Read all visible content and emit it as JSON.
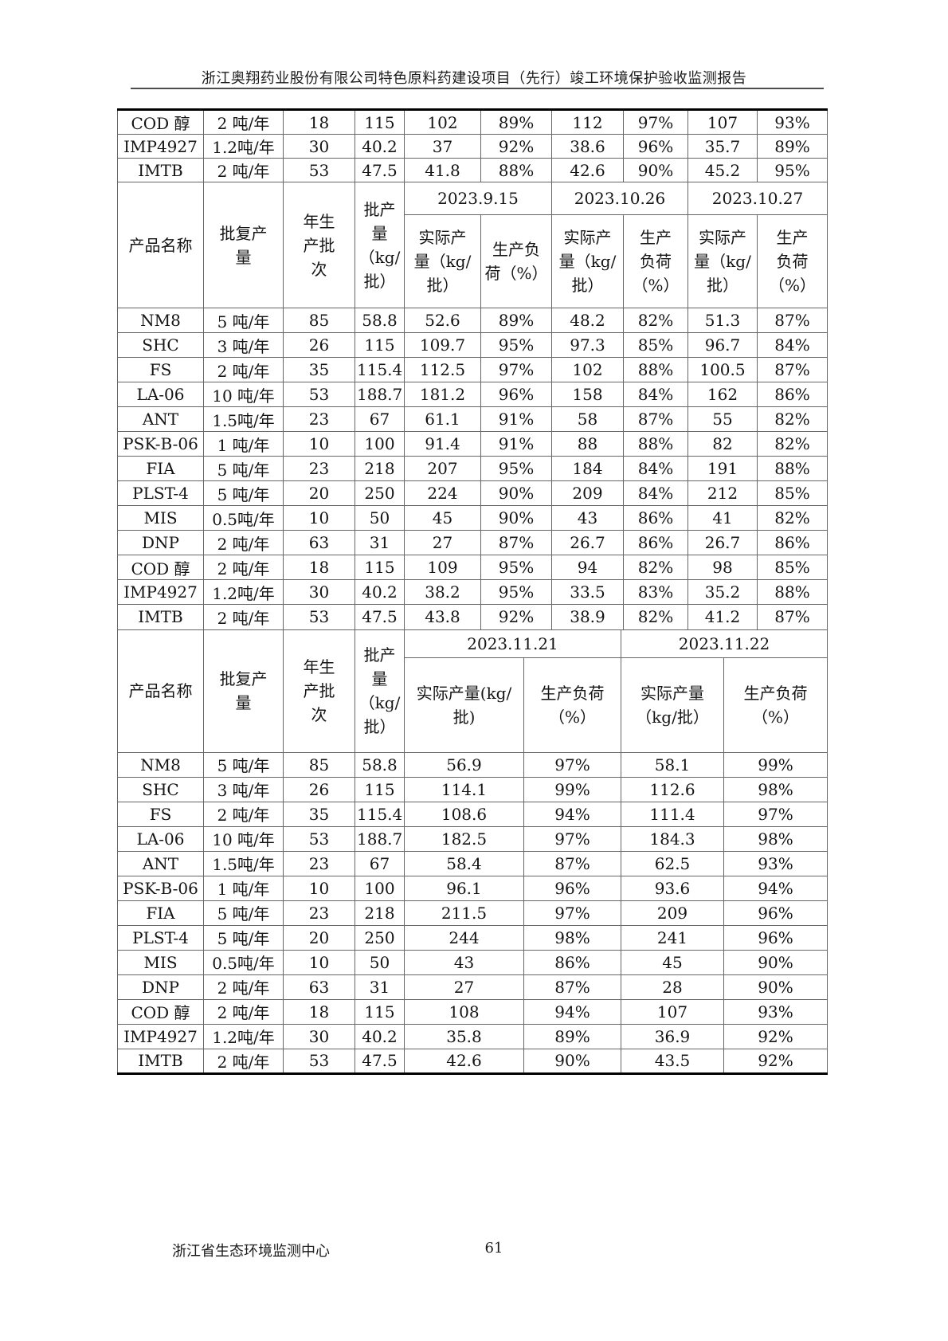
{
  "page": {
    "title": "浙江奥翔药业股份有限公司特色原料药建设项目（先行）竣工环境保护验收监测报告",
    "footer": {
      "org": "浙江省生态环境监测中心",
      "page_number": "61"
    }
  },
  "column_headers": {
    "product": "产品名称",
    "approved_output": "批复产\n量",
    "annual_batches": "年生\n产批\n次",
    "batch_output": "批产\n量\n（kg/\n批）"
  },
  "carryover": {
    "rows": [
      [
        "COD 醇",
        "2 吨/年",
        "18",
        "115",
        "102",
        "89%",
        "112",
        "97%",
        "107",
        "93%"
      ],
      [
        "IMP4927",
        "1.2吨/年",
        "30",
        "40.2",
        "37",
        "92%",
        "38.6",
        "96%",
        "35.7",
        "89%"
      ],
      [
        "IMTB",
        "2 吨/年",
        "53",
        "47.5",
        "41.8",
        "88%",
        "42.6",
        "90%",
        "45.2",
        "95%"
      ]
    ]
  },
  "table_sep_oct": {
    "dates": [
      "2023.9.15",
      "2023.10.26",
      "2023.10.27"
    ],
    "sub_headers": [
      "实际产\n量（kg/\n批）",
      "生产负\n荷（%）",
      "实际产\n量（kg/\n批）",
      "生产\n负荷\n（%）",
      "实际产\n量（kg/\n批）",
      "生产\n负荷\n（%）"
    ],
    "rows": [
      [
        "NM8",
        "5 吨/年",
        "85",
        "58.8",
        "52.6",
        "89%",
        "48.2",
        "82%",
        "51.3",
        "87%"
      ],
      [
        "SHC",
        "3 吨/年",
        "26",
        "115",
        "109.7",
        "95%",
        "97.3",
        "85%",
        "96.7",
        "84%"
      ],
      [
        "FS",
        "2 吨/年",
        "35",
        "115.4",
        "112.5",
        "97%",
        "102",
        "88%",
        "100.5",
        "87%"
      ],
      [
        "LA-06",
        "10 吨/年",
        "53",
        "188.7",
        "181.2",
        "96%",
        "158",
        "84%",
        "162",
        "86%"
      ],
      [
        "ANT",
        "1.5吨/年",
        "23",
        "67",
        "61.1",
        "91%",
        "58",
        "87%",
        "55",
        "82%"
      ],
      [
        "PSK-B-06",
        "1 吨/年",
        "10",
        "100",
        "91.4",
        "91%",
        "88",
        "88%",
        "82",
        "82%"
      ],
      [
        "FIA",
        "5 吨/年",
        "23",
        "218",
        "207",
        "95%",
        "184",
        "84%",
        "191",
        "88%"
      ],
      [
        "PLST-4",
        "5 吨/年",
        "20",
        "250",
        "224",
        "90%",
        "209",
        "84%",
        "212",
        "85%"
      ],
      [
        "MIS",
        "0.5吨/年",
        "10",
        "50",
        "45",
        "90%",
        "43",
        "86%",
        "41",
        "82%"
      ],
      [
        "DNP",
        "2 吨/年",
        "63",
        "31",
        "27",
        "87%",
        "26.7",
        "86%",
        "26.7",
        "86%"
      ],
      [
        "COD 醇",
        "2 吨/年",
        "18",
        "115",
        "109",
        "95%",
        "94",
        "82%",
        "98",
        "85%"
      ],
      [
        "IMP4927",
        "1.2吨/年",
        "30",
        "40.2",
        "38.2",
        "95%",
        "33.5",
        "83%",
        "35.2",
        "88%"
      ],
      [
        "IMTB",
        "2 吨/年",
        "53",
        "47.5",
        "43.8",
        "92%",
        "38.9",
        "82%",
        "41.2",
        "87%"
      ]
    ]
  },
  "table_nov": {
    "dates": [
      "2023.11.21",
      "2023.11.22"
    ],
    "sub_headers": [
      "实际产量(kg/\n批)",
      "生产负荷\n（%）",
      "实际产量\n（kg/批）",
      "生产负荷\n（%）"
    ],
    "rows": [
      [
        "NM8",
        "5 吨/年",
        "85",
        "58.8",
        "56.9",
        "97%",
        "58.1",
        "99%"
      ],
      [
        "SHC",
        "3 吨/年",
        "26",
        "115",
        "114.1",
        "99%",
        "112.6",
        "98%"
      ],
      [
        "FS",
        "2 吨/年",
        "35",
        "115.4",
        "108.6",
        "94%",
        "111.4",
        "97%"
      ],
      [
        "LA-06",
        "10 吨/年",
        "53",
        "188.7",
        "182.5",
        "97%",
        "184.3",
        "98%"
      ],
      [
        "ANT",
        "1.5吨/年",
        "23",
        "67",
        "58.4",
        "87%",
        "62.5",
        "93%"
      ],
      [
        "PSK-B-06",
        "1 吨/年",
        "10",
        "100",
        "96.1",
        "96%",
        "93.6",
        "94%"
      ],
      [
        "FIA",
        "5 吨/年",
        "23",
        "218",
        "211.5",
        "97%",
        "209",
        "96%"
      ],
      [
        "PLST-4",
        "5 吨/年",
        "20",
        "250",
        "244",
        "98%",
        "241",
        "96%"
      ],
      [
        "MIS",
        "0.5吨/年",
        "10",
        "50",
        "43",
        "86%",
        "45",
        "90%"
      ],
      [
        "DNP",
        "2 吨/年",
        "63",
        "31",
        "27",
        "87%",
        "28",
        "90%"
      ],
      [
        "COD 醇",
        "2 吨/年",
        "18",
        "115",
        "108",
        "94%",
        "107",
        "93%"
      ],
      [
        "IMP4927",
        "1.2吨/年",
        "30",
        "40.2",
        "35.8",
        "89%",
        "36.9",
        "92%"
      ],
      [
        "IMTB",
        "2 吨/年",
        "53",
        "47.5",
        "42.6",
        "90%",
        "43.5",
        "92%"
      ]
    ]
  }
}
